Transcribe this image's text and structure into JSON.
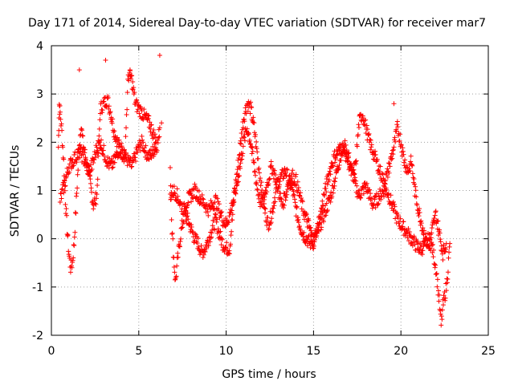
{
  "chart_data": {
    "type": "scatter",
    "title": "Day 171 of 2014, Sidereal Day-to-day VTEC variation (SDTVAR) for receiver mar7",
    "xlabel": "GPS time / hours",
    "ylabel": "SDTVAR / TECUs",
    "xlim": [
      0,
      25
    ],
    "ylim": [
      -2,
      4
    ],
    "xticks": [
      0,
      5,
      10,
      15,
      20,
      25
    ],
    "yticks": [
      -2,
      -1,
      0,
      1,
      2,
      3,
      4
    ],
    "grid": true,
    "marker": "plus",
    "color": "#ff0000",
    "series": [
      {
        "name": "SDTVAR",
        "trace_a": [
          [
            0.4,
            1.9
          ],
          [
            0.45,
            2.8
          ],
          [
            0.5,
            2.6
          ],
          [
            0.6,
            2.2
          ],
          [
            0.7,
            1.6
          ],
          [
            0.8,
            0.8
          ],
          [
            0.9,
            0.2
          ],
          [
            1.0,
            -0.3
          ],
          [
            1.1,
            -0.6
          ],
          [
            1.2,
            -0.5
          ],
          [
            1.3,
            -0.1
          ],
          [
            1.4,
            0.6
          ],
          [
            1.5,
            1.3
          ],
          [
            1.6,
            1.9
          ],
          [
            1.7,
            2.4
          ],
          [
            1.8,
            2.0
          ],
          [
            2.0,
            1.6
          ],
          [
            2.2,
            1.2
          ],
          [
            2.4,
            0.7
          ],
          [
            2.6,
            0.9
          ],
          [
            2.7,
            1.8
          ],
          [
            2.8,
            2.7
          ],
          [
            3.0,
            2.8
          ],
          [
            3.2,
            2.9
          ],
          [
            3.4,
            2.6
          ],
          [
            3.6,
            2.2
          ],
          [
            3.8,
            2.0
          ],
          [
            4.0,
            1.8
          ],
          [
            4.2,
            1.7
          ],
          [
            4.4,
            1.6
          ],
          [
            4.6,
            1.5
          ],
          [
            4.8,
            1.7
          ],
          [
            5.0,
            1.9
          ],
          [
            5.2,
            2.0
          ],
          [
            5.4,
            1.8
          ],
          [
            5.6,
            1.7
          ],
          [
            5.8,
            1.8
          ],
          [
            6.0,
            1.9
          ],
          [
            6.1,
            2.0
          ],
          [
            6.2,
            2.3
          ],
          [
            6.8,
            1.5
          ],
          [
            6.9,
            0.2
          ],
          [
            7.0,
            -0.4
          ],
          [
            7.1,
            -0.9
          ],
          [
            7.2,
            -0.5
          ],
          [
            7.4,
            0.1
          ],
          [
            7.6,
            0.5
          ],
          [
            7.8,
            0.4
          ],
          [
            8.0,
            0.2
          ],
          [
            8.2,
            0.0
          ],
          [
            8.4,
            -0.1
          ],
          [
            8.6,
            -0.3
          ],
          [
            8.8,
            -0.2
          ],
          [
            9.0,
            0.0
          ],
          [
            9.2,
            0.2
          ],
          [
            9.4,
            0.4
          ],
          [
            9.6,
            0.1
          ],
          [
            9.8,
            -0.1
          ],
          [
            10.0,
            -0.2
          ],
          [
            10.2,
            -0.2
          ],
          [
            10.5,
            1.0
          ],
          [
            10.8,
            1.9
          ],
          [
            11.0,
            2.5
          ],
          [
            11.2,
            2.8
          ],
          [
            11.4,
            2.7
          ],
          [
            11.6,
            2.3
          ],
          [
            11.8,
            1.7
          ],
          [
            12.0,
            1.1
          ],
          [
            12.2,
            0.6
          ],
          [
            12.4,
            0.3
          ],
          [
            12.6,
            0.5
          ],
          [
            12.8,
            0.9
          ],
          [
            13.0,
            1.2
          ],
          [
            13.2,
            1.3
          ],
          [
            13.4,
            1.4
          ],
          [
            13.6,
            1.2
          ],
          [
            13.8,
            1.0
          ],
          [
            14.0,
            0.6
          ],
          [
            14.2,
            0.3
          ],
          [
            14.4,
            0.1
          ],
          [
            14.6,
            0.0
          ],
          [
            14.8,
            -0.1
          ],
          [
            15.0,
            0.0
          ],
          [
            15.2,
            0.1
          ],
          [
            15.4,
            0.3
          ],
          [
            15.6,
            0.5
          ],
          [
            15.8,
            0.7
          ],
          [
            16.0,
            0.9
          ],
          [
            16.2,
            1.2
          ],
          [
            16.4,
            1.5
          ],
          [
            16.6,
            1.8
          ],
          [
            16.8,
            1.9
          ],
          [
            17.0,
            1.7
          ],
          [
            17.2,
            1.4
          ],
          [
            17.4,
            1.1
          ],
          [
            17.6,
            0.9
          ],
          [
            17.8,
            1.0
          ],
          [
            18.0,
            1.1
          ],
          [
            18.2,
            0.9
          ],
          [
            18.4,
            0.7
          ],
          [
            18.6,
            0.8
          ],
          [
            18.8,
            0.9
          ],
          [
            19.0,
            1.0
          ],
          [
            19.2,
            1.0
          ],
          [
            19.4,
            0.8
          ],
          [
            19.6,
            0.6
          ],
          [
            19.8,
            0.4
          ],
          [
            20.0,
            0.3
          ],
          [
            20.2,
            0.2
          ],
          [
            20.4,
            0.1
          ],
          [
            20.6,
            0.0
          ],
          [
            20.8,
            -0.1
          ],
          [
            21.0,
            -0.2
          ],
          [
            21.2,
            -0.2
          ],
          [
            21.4,
            -0.1
          ],
          [
            21.6,
            0.0
          ],
          [
            21.8,
            -0.2
          ],
          [
            22.0,
            -0.6
          ],
          [
            22.2,
            -1.3
          ],
          [
            22.3,
            -1.8
          ],
          [
            22.4,
            -1.4
          ],
          [
            22.6,
            -1.0
          ],
          [
            22.7,
            -0.6
          ],
          [
            22.8,
            -0.1
          ]
        ],
        "trace_b": [
          [
            0.5,
            0.8
          ],
          [
            0.8,
            1.2
          ],
          [
            1.0,
            1.5
          ],
          [
            1.2,
            1.6
          ],
          [
            1.4,
            1.7
          ],
          [
            1.6,
            1.8
          ],
          [
            1.8,
            1.7
          ],
          [
            2.0,
            1.5
          ],
          [
            2.2,
            1.4
          ],
          [
            2.4,
            1.6
          ],
          [
            2.6,
            1.9
          ],
          [
            2.8,
            2.0
          ],
          [
            3.0,
            1.8
          ],
          [
            3.2,
            1.6
          ],
          [
            3.4,
            1.5
          ],
          [
            3.6,
            1.6
          ],
          [
            3.8,
            1.8
          ],
          [
            4.0,
            1.9
          ],
          [
            4.2,
            1.7
          ],
          [
            4.4,
            3.4
          ],
          [
            4.6,
            3.3
          ],
          [
            4.8,
            2.8
          ],
          [
            5.0,
            2.7
          ],
          [
            5.2,
            2.6
          ],
          [
            5.4,
            2.5
          ],
          [
            5.6,
            2.4
          ],
          [
            5.8,
            2.2
          ],
          [
            6.0,
            2.0
          ],
          [
            6.8,
            0.9
          ],
          [
            7.0,
            1.0
          ],
          [
            7.2,
            0.9
          ],
          [
            7.4,
            0.7
          ],
          [
            7.6,
            0.6
          ],
          [
            7.8,
            0.8
          ],
          [
            8.0,
            0.9
          ],
          [
            8.2,
            1.0
          ],
          [
            8.4,
            0.9
          ],
          [
            8.6,
            0.8
          ],
          [
            8.8,
            0.7
          ],
          [
            9.0,
            0.6
          ],
          [
            9.2,
            0.7
          ],
          [
            9.4,
            0.8
          ],
          [
            9.6,
            0.6
          ],
          [
            9.8,
            0.4
          ],
          [
            10.0,
            0.3
          ],
          [
            10.2,
            0.5
          ],
          [
            10.4,
            0.8
          ],
          [
            10.6,
            1.1
          ],
          [
            10.8,
            1.5
          ],
          [
            11.0,
            2.0
          ],
          [
            11.2,
            2.3
          ],
          [
            11.4,
            2.0
          ],
          [
            11.6,
            1.5
          ],
          [
            11.8,
            1.0
          ],
          [
            12.0,
            0.7
          ],
          [
            12.2,
            0.9
          ],
          [
            12.4,
            1.2
          ],
          [
            12.6,
            1.5
          ],
          [
            12.8,
            1.3
          ],
          [
            13.0,
            1.0
          ],
          [
            13.2,
            0.7
          ],
          [
            13.4,
            0.9
          ],
          [
            13.6,
            1.2
          ],
          [
            13.8,
            1.3
          ],
          [
            14.0,
            1.2
          ],
          [
            14.2,
            0.9
          ],
          [
            14.4,
            0.6
          ],
          [
            14.6,
            0.4
          ],
          [
            14.8,
            0.2
          ],
          [
            15.0,
            -0.1
          ],
          [
            15.2,
            0.2
          ],
          [
            15.4,
            0.5
          ],
          [
            15.6,
            0.9
          ],
          [
            15.8,
            1.2
          ],
          [
            16.0,
            1.5
          ],
          [
            16.2,
            1.7
          ],
          [
            16.4,
            1.8
          ],
          [
            16.6,
            1.9
          ],
          [
            16.8,
            1.8
          ],
          [
            17.0,
            1.6
          ],
          [
            17.2,
            1.3
          ],
          [
            17.4,
            1.5
          ],
          [
            17.6,
            2.4
          ],
          [
            17.8,
            2.6
          ],
          [
            18.0,
            2.3
          ],
          [
            18.2,
            2.0
          ],
          [
            18.4,
            1.8
          ],
          [
            18.6,
            1.6
          ],
          [
            18.8,
            1.4
          ],
          [
            19.0,
            1.2
          ],
          [
            19.2,
            1.3
          ],
          [
            19.4,
            1.6
          ],
          [
            19.6,
            1.9
          ],
          [
            19.8,
            2.3
          ],
          [
            20.0,
            2.0
          ],
          [
            20.2,
            1.6
          ],
          [
            20.4,
            1.4
          ],
          [
            20.6,
            1.6
          ],
          [
            20.8,
            1.0
          ],
          [
            21.0,
            0.6
          ],
          [
            21.2,
            0.3
          ],
          [
            21.4,
            0.0
          ],
          [
            21.6,
            -0.2
          ],
          [
            21.8,
            0.2
          ],
          [
            22.0,
            0.5
          ],
          [
            22.2,
            0.1
          ],
          [
            22.4,
            -0.3
          ],
          [
            22.6,
            -0.1
          ]
        ],
        "outliers": [
          [
            6.2,
            3.8
          ],
          [
            1.6,
            3.5
          ],
          [
            3.1,
            3.7
          ],
          [
            4.5,
            3.5
          ],
          [
            6.3,
            2.4
          ],
          [
            19.6,
            2.8
          ]
        ]
      }
    ]
  }
}
